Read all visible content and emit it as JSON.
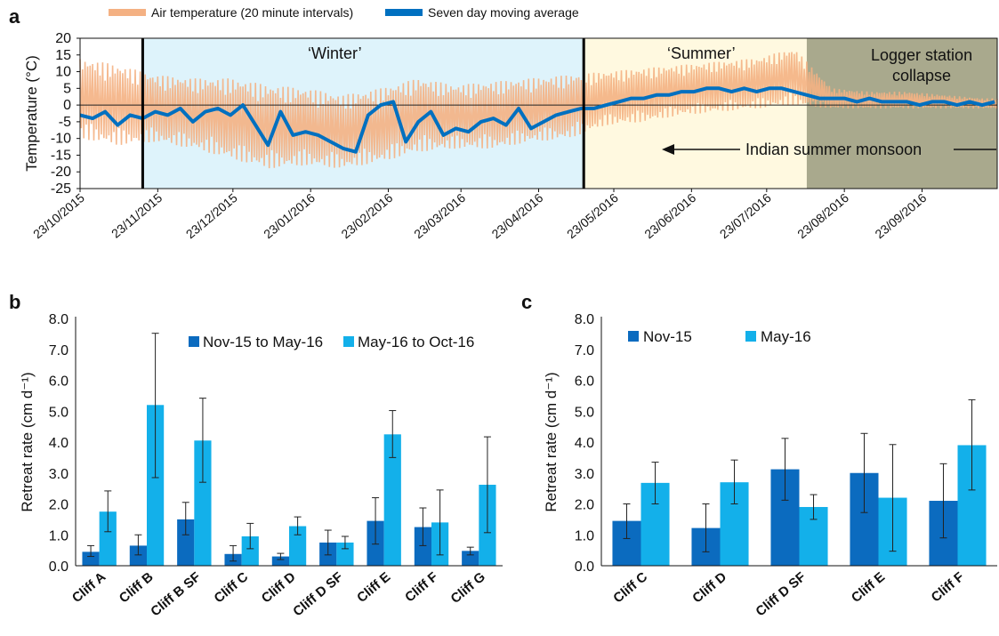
{
  "chart_data": [
    {
      "panel": "a",
      "type": "line",
      "ylabel": "Temperature (°C)",
      "ylim": [
        -25,
        20
      ],
      "yticks": [
        20,
        15,
        10,
        5,
        0,
        -5,
        -10,
        -15,
        -20,
        -25
      ],
      "xlim": [
        "2015-10-23",
        "2016-10-23"
      ],
      "xticks": [
        "23/10/2015",
        "23/11/2015",
        "23/12/2015",
        "23/01/2016",
        "23/02/2016",
        "23/03/2016",
        "23/04/2016",
        "23/05/2016",
        "23/06/2016",
        "23/07/2016",
        "23/08/2016",
        "23/09/2016"
      ],
      "legend": [
        "Air temperature (20 minute intervals)",
        "Seven day moving average"
      ],
      "legend_position": "top",
      "colors": {
        "air": "#f4b183",
        "avg": "#0070c0",
        "winter_bg": "#def3fb",
        "summer_bg": "#fff9e0",
        "collapse_bg": "#a9a98d"
      },
      "regions": [
        {
          "label": "",
          "start": "2015-10-23",
          "end": "2015-11-17"
        },
        {
          "label": "‘Winter’",
          "start": "2015-11-17",
          "end": "2016-05-11",
          "color": "winter_bg"
        },
        {
          "label": "‘Summer’",
          "start": "2016-05-11",
          "end": "2016-08-08",
          "color": "summer_bg"
        },
        {
          "label": "Logger station collapse",
          "label_lines": [
            "Logger station",
            "collapse"
          ],
          "start": "2016-08-08",
          "end": "2016-10-23",
          "color": "collapse_bg"
        }
      ],
      "phase_lines": [
        "2015-11-17",
        "2016-05-11"
      ],
      "annotation": "Indian summer monsoon",
      "moving_average": {
        "x": [
          "2015-10-23",
          "2015-10-28",
          "2015-11-02",
          "2015-11-07",
          "2015-11-12",
          "2015-11-17",
          "2015-11-22",
          "2015-11-27",
          "2015-12-02",
          "2015-12-07",
          "2015-12-12",
          "2015-12-17",
          "2015-12-22",
          "2015-12-27",
          "2016-01-01",
          "2016-01-06",
          "2016-01-11",
          "2016-01-16",
          "2016-01-21",
          "2016-01-26",
          "2016-01-31",
          "2016-02-05",
          "2016-02-10",
          "2016-02-15",
          "2016-02-20",
          "2016-02-25",
          "2016-03-01",
          "2016-03-06",
          "2016-03-11",
          "2016-03-16",
          "2016-03-21",
          "2016-03-26",
          "2016-03-31",
          "2016-04-05",
          "2016-04-10",
          "2016-04-15",
          "2016-04-20",
          "2016-04-25",
          "2016-04-30",
          "2016-05-05",
          "2016-05-10",
          "2016-05-15",
          "2016-05-20",
          "2016-05-25",
          "2016-05-30",
          "2016-06-04",
          "2016-06-09",
          "2016-06-14",
          "2016-06-19",
          "2016-06-24",
          "2016-06-29",
          "2016-07-04",
          "2016-07-09",
          "2016-07-14",
          "2016-07-19",
          "2016-07-24",
          "2016-07-29",
          "2016-08-03",
          "2016-08-08",
          "2016-08-13",
          "2016-08-18",
          "2016-08-23",
          "2016-08-28",
          "2016-09-02",
          "2016-09-07",
          "2016-09-12",
          "2016-09-17",
          "2016-09-22",
          "2016-09-27",
          "2016-10-02",
          "2016-10-07",
          "2016-10-12",
          "2016-10-17",
          "2016-10-22"
        ],
        "y": [
          -3,
          -4,
          -2,
          -6,
          -3,
          -4,
          -2,
          -3,
          -1,
          -5,
          -2,
          -1,
          -3,
          0,
          -6,
          -12,
          -2,
          -9,
          -8,
          -9,
          -11,
          -13,
          -14,
          -3,
          0,
          1,
          -11,
          -5,
          -2,
          -9,
          -7,
          -8,
          -5,
          -4,
          -6,
          -1,
          -7,
          -5,
          -3,
          -2,
          -1,
          -1,
          0,
          1,
          2,
          2,
          3,
          3,
          4,
          4,
          5,
          5,
          4,
          5,
          4,
          5,
          5,
          4,
          3,
          2,
          2,
          2,
          1,
          2,
          1,
          1,
          1,
          0,
          1,
          1,
          0,
          1,
          0,
          1
        ]
      },
      "air_temperature_envelope": {
        "x": [
          "2015-10-23",
          "2015-11-07",
          "2015-11-22",
          "2015-12-07",
          "2015-12-22",
          "2016-01-06",
          "2016-01-21",
          "2016-02-05",
          "2016-02-20",
          "2016-03-06",
          "2016-03-21",
          "2016-04-05",
          "2016-04-20",
          "2016-05-05",
          "2016-05-20",
          "2016-06-04",
          "2016-06-19",
          "2016-07-04",
          "2016-07-19",
          "2016-08-03",
          "2016-08-18",
          "2016-09-02",
          "2016-09-17",
          "2016-10-02",
          "2016-10-17"
        ],
        "max": [
          14,
          12,
          9,
          8,
          8,
          6,
          5,
          3,
          5,
          8,
          6,
          7,
          8,
          9,
          10,
          11,
          12,
          13,
          14,
          17,
          5,
          4,
          4,
          3,
          2
        ],
        "min": [
          -10,
          -12,
          -11,
          -13,
          -16,
          -19,
          -18,
          -19,
          -17,
          -14,
          -13,
          -13,
          -11,
          -10,
          -6,
          -5,
          -3,
          -2,
          -1,
          0,
          -1,
          -1,
          -1,
          -1,
          -1
        ]
      }
    },
    {
      "panel": "b",
      "type": "bar",
      "ylabel": "Retreat rate (cm d⁻¹)",
      "ylim": [
        0,
        8
      ],
      "yticks": [
        "8.0",
        "7.0",
        "6.0",
        "5.0",
        "4.0",
        "3.0",
        "2.0",
        "1.0",
        "0.0"
      ],
      "categories": [
        "Cliff A",
        "Cliff B",
        "Cliff B SF",
        "Cliff C",
        "Cliff D",
        "Cliff D SF",
        "Cliff E",
        "Cliff F",
        "Cliff G"
      ],
      "legend_position": "top-right",
      "series": [
        {
          "name": "Nov-15 to May-16",
          "color": "#0b6bbf",
          "values": [
            0.45,
            0.65,
            1.5,
            0.38,
            0.3,
            0.75,
            1.45,
            1.25,
            0.48
          ],
          "err_low": [
            0.3,
            0.35,
            1.0,
            0.15,
            0.2,
            0.35,
            0.7,
            0.65,
            0.35
          ],
          "err_high": [
            0.65,
            1.0,
            2.05,
            0.65,
            0.4,
            1.15,
            2.2,
            1.87,
            0.6
          ]
        },
        {
          "name": "May-16 to Oct-16",
          "color": "#13b0ea",
          "values": [
            1.75,
            5.2,
            4.05,
            0.95,
            1.28,
            0.75,
            4.25,
            1.4,
            2.62
          ],
          "err_low": [
            1.1,
            2.85,
            2.7,
            0.55,
            1.0,
            0.55,
            3.5,
            0.35,
            1.07
          ],
          "err_high": [
            2.42,
            7.52,
            5.42,
            1.37,
            1.58,
            0.95,
            5.02,
            2.45,
            4.17
          ]
        }
      ]
    },
    {
      "panel": "c",
      "type": "bar",
      "ylabel": "Retreat rate (cm d⁻¹)",
      "ylim": [
        0,
        8
      ],
      "yticks": [
        "8.0",
        "7.0",
        "6.0",
        "5.0",
        "4.0",
        "3.0",
        "2.0",
        "1.0",
        "0.0"
      ],
      "categories": [
        "Cliff C",
        "Cliff D",
        "Cliff D SF",
        "Cliff E",
        "Cliff F"
      ],
      "legend_position": "top-left",
      "series": [
        {
          "name": "Nov-15",
          "color": "#0b6bbf",
          "values": [
            1.45,
            1.22,
            3.12,
            3.0,
            2.1
          ],
          "err_low": [
            0.88,
            0.45,
            2.12,
            1.72,
            0.9
          ],
          "err_high": [
            2.0,
            2.0,
            4.12,
            4.28,
            3.3
          ]
        },
        {
          "name": "May-16",
          "color": "#13b0ea",
          "values": [
            2.68,
            2.7,
            1.9,
            2.2,
            3.9
          ],
          "err_low": [
            2.0,
            2.0,
            1.5,
            0.47,
            2.45
          ],
          "err_high": [
            3.35,
            3.42,
            2.3,
            3.92,
            5.37
          ]
        }
      ]
    }
  ],
  "panel_labels": {
    "a": "a",
    "b": "b",
    "c": "c"
  }
}
